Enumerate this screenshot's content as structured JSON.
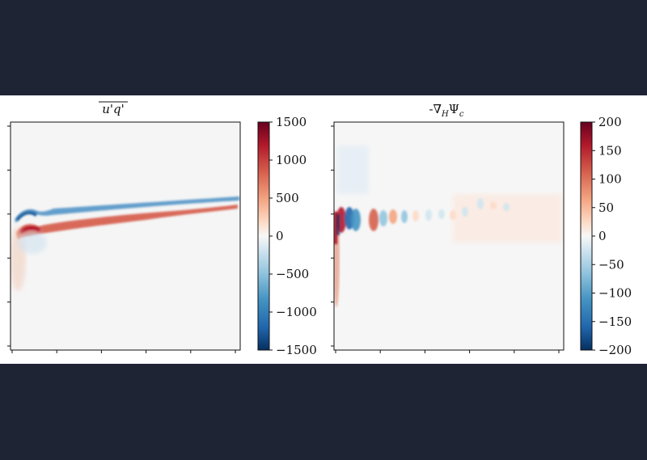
{
  "chart_data": [
    {
      "type": "heatmap",
      "title": "u'q'",
      "title_overline": true,
      "colormap": "RdBu_r",
      "colorbar": {
        "vmin": -1500,
        "vmax": 1500,
        "ticks": [
          1500,
          1000,
          500,
          0,
          -500,
          -1000,
          -1500
        ],
        "tick_labels": [
          "1500",
          "1000",
          "500",
          "0",
          "−500",
          "−1000",
          "−1500"
        ]
      },
      "x_tick_count": 6,
      "y_tick_count": 6,
      "tick_labels_visible": false
    },
    {
      "type": "heatmap",
      "title": "-∇HΨc",
      "title_parts": {
        "prefix": "-∇",
        "sub1": "H",
        "mid": "Ψ",
        "sub2": "c"
      },
      "colormap": "RdBu_r",
      "colorbar": {
        "vmin": -200,
        "vmax": 200,
        "ticks": [
          200,
          150,
          100,
          50,
          0,
          -50,
          -100,
          -150,
          -200
        ],
        "tick_labels": [
          "200",
          "150",
          "100",
          "50",
          "0",
          "−50",
          "−100",
          "−150",
          "−200"
        ]
      },
      "x_tick_count": 6,
      "y_tick_count": 6,
      "tick_labels_visible": false
    }
  ],
  "colors": {
    "background": "#1f2435",
    "panel": "#ffffff",
    "cmap_low": "#053061",
    "cmap_mid": "#f7f7f7",
    "cmap_high": "#67001f"
  }
}
